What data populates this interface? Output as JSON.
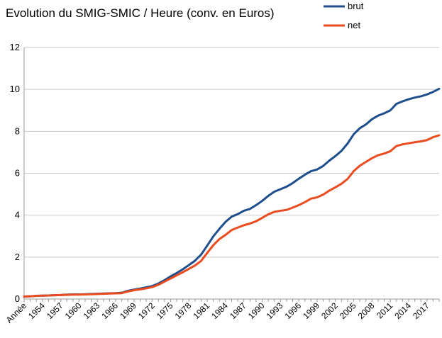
{
  "chart_data": {
    "type": "line",
    "title": "Evolution du SMIG-SMIC / Heure (conv. en Euros)",
    "xlabel": "",
    "ylabel": "",
    "ylim": [
      0,
      12
    ],
    "yticks": [
      0,
      2,
      4,
      6,
      8,
      10,
      12
    ],
    "grid": true,
    "legend_position": "top-right",
    "x_tick_labels": [
      "Année",
      "1954",
      "1957",
      "1960",
      "1963",
      "1966",
      "1969",
      "1972",
      "1975",
      "1978",
      "1981",
      "1984",
      "1987",
      "1990",
      "1993",
      "1996",
      "1999",
      "2002",
      "2005",
      "2008",
      "2011",
      "2014",
      "2017"
    ],
    "x": [
      1951,
      1952,
      1953,
      1954,
      1955,
      1956,
      1957,
      1958,
      1959,
      1960,
      1961,
      1962,
      1963,
      1964,
      1965,
      1966,
      1967,
      1968,
      1969,
      1970,
      1971,
      1972,
      1973,
      1974,
      1975,
      1976,
      1977,
      1978,
      1979,
      1980,
      1981,
      1982,
      1983,
      1984,
      1985,
      1986,
      1987,
      1988,
      1989,
      1990,
      1991,
      1992,
      1993,
      1994,
      1995,
      1996,
      1997,
      1998,
      1999,
      2000,
      2001,
      2002,
      2003,
      2004,
      2005,
      2006,
      2007,
      2008,
      2009,
      2010,
      2011,
      2012,
      2013,
      2014,
      2015,
      2016,
      2017,
      2018,
      2019
    ],
    "series": [
      {
        "name": "brut",
        "color": "#1f4e8c",
        "values": [
          0.12,
          0.13,
          0.15,
          0.16,
          0.17,
          0.18,
          0.19,
          0.21,
          0.22,
          0.22,
          0.23,
          0.24,
          0.25,
          0.26,
          0.27,
          0.28,
          0.3,
          0.39,
          0.45,
          0.5,
          0.56,
          0.62,
          0.74,
          0.9,
          1.08,
          1.24,
          1.42,
          1.62,
          1.83,
          2.12,
          2.55,
          2.99,
          3.35,
          3.68,
          3.93,
          4.05,
          4.21,
          4.3,
          4.48,
          4.68,
          4.92,
          5.12,
          5.24,
          5.36,
          5.53,
          5.74,
          5.93,
          6.1,
          6.18,
          6.35,
          6.6,
          6.82,
          7.07,
          7.42,
          7.86,
          8.15,
          8.33,
          8.58,
          8.75,
          8.86,
          9.0,
          9.31,
          9.43,
          9.53,
          9.61,
          9.67,
          9.76,
          9.88,
          10.03
        ]
      },
      {
        "name": "net",
        "color": "#ea4b1f",
        "values": [
          0.12,
          0.13,
          0.15,
          0.16,
          0.17,
          0.18,
          0.19,
          0.2,
          0.21,
          0.21,
          0.22,
          0.23,
          0.24,
          0.25,
          0.26,
          0.27,
          0.28,
          0.36,
          0.42,
          0.46,
          0.51,
          0.57,
          0.68,
          0.83,
          0.98,
          1.13,
          1.28,
          1.44,
          1.6,
          1.82,
          2.2,
          2.57,
          2.86,
          3.06,
          3.29,
          3.41,
          3.52,
          3.6,
          3.71,
          3.87,
          4.04,
          4.16,
          4.21,
          4.25,
          4.36,
          4.48,
          4.62,
          4.79,
          4.85,
          4.98,
          5.17,
          5.33,
          5.5,
          5.73,
          6.1,
          6.36,
          6.54,
          6.72,
          6.86,
          6.94,
          7.05,
          7.3,
          7.38,
          7.43,
          7.48,
          7.52,
          7.58,
          7.72,
          7.81
        ]
      }
    ]
  }
}
